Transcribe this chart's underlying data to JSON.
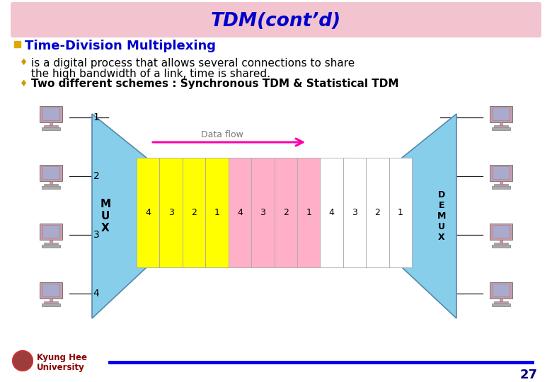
{
  "title": "TDM(cont’d)",
  "title_bg": "#f2c4d0",
  "title_color": "#0000cc",
  "bg_color": "#ffffff",
  "bullet1_text": "Time-Division Multiplexing",
  "sub1_text": "is a digital process that allows several connections to share\nthe high bandwidth of a link, time is shared.",
  "sub2_text": "Two different schemes : Synchronous TDM & Statistical TDM",
  "mux_color": "#87ceeb",
  "demux_color": "#87ceeb",
  "yellow_color": "#ffff00",
  "pink_color": "#ffb0c8",
  "white_color": "#ffffff",
  "slot_text_color": "#000000",
  "arrow_color": "#ff00aa",
  "data_flow_label": "Data flow",
  "line_numbers": [
    "1",
    "2",
    "3",
    "4"
  ],
  "footer_line_color": "#0000ee",
  "page_num": "27",
  "page_num_color": "#000080",
  "computer_body_color": "#cc99aa",
  "computer_screen_color": "#aaaacc",
  "computer_kb_color": "#aaaaaa"
}
